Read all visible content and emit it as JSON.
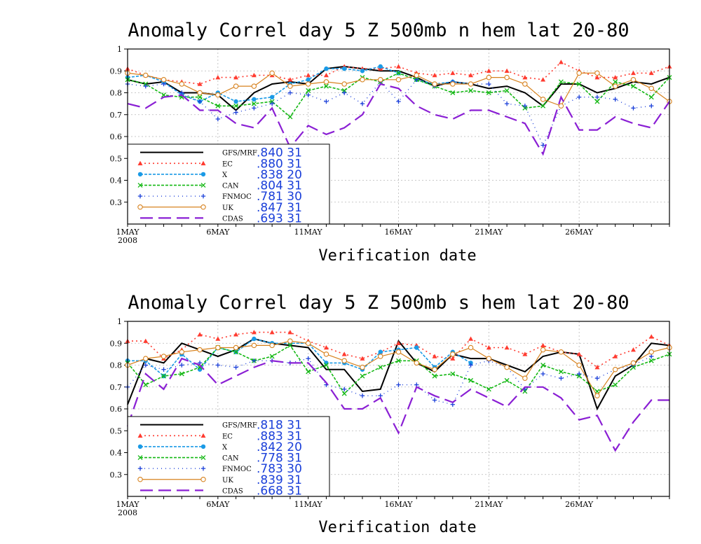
{
  "chart_data": [
    {
      "type": "line",
      "title": "Anomaly Correl  day 5  Z 500mb  n hem  lat 20-80",
      "xlabel": "Verification date",
      "ylabel": "",
      "ylim": [
        0.2,
        1.0
      ],
      "yticks": [
        "1",
        "0.9",
        "0.8",
        "0.7",
        "0.6",
        "0.5",
        "0.4",
        "0.3"
      ],
      "xlim": [
        1,
        31
      ],
      "xticks": [
        {
          "day": 1,
          "label": "1MAY",
          "sub": "2008"
        },
        {
          "day": 6,
          "label": "6MAY",
          "sub": ""
        },
        {
          "day": 11,
          "label": "11MAY",
          "sub": ""
        },
        {
          "day": 16,
          "label": "16MAY",
          "sub": ""
        },
        {
          "day": 21,
          "label": "21MAY",
          "sub": ""
        },
        {
          "day": 26,
          "label": "26MAY",
          "sub": ""
        }
      ],
      "grid": true,
      "legend_position": "bottom-left",
      "series": [
        {
          "name": "GFS/MRF",
          "score": ".840",
          "count": "31",
          "values": [
            0.86,
            0.84,
            0.85,
            0.8,
            0.8,
            0.79,
            0.72,
            0.8,
            0.84,
            0.85,
            0.84,
            0.91,
            0.92,
            0.91,
            0.9,
            0.9,
            0.87,
            0.83,
            0.85,
            0.84,
            0.82,
            0.83,
            0.8,
            0.74,
            0.84,
            0.84,
            0.8,
            0.82,
            0.85,
            0.84,
            0.87
          ]
        },
        {
          "name": "EC",
          "score": ".880",
          "count": "31",
          "values": [
            0.91,
            0.88,
            0.86,
            0.85,
            0.84,
            0.87,
            0.87,
            0.88,
            0.88,
            0.86,
            0.88,
            0.88,
            0.92,
            0.91,
            0.91,
            0.92,
            0.89,
            0.88,
            0.89,
            0.88,
            0.9,
            0.9,
            0.87,
            0.86,
            0.94,
            0.9,
            0.87,
            0.87,
            0.89,
            0.89,
            0.92
          ]
        },
        {
          "name": "X",
          "score": ".838",
          "count": "20",
          "values": [
            0.87,
            0.88,
            0.85,
            0.79,
            0.76,
            0.8,
            0.76,
            0.77,
            0.78,
            0.84,
            0.86,
            0.91,
            0.91,
            0.9,
            0.92,
            0.89,
            0.86,
            0.84,
            0.85,
            0.84,
            null,
            null,
            null,
            null,
            null,
            null,
            null,
            null,
            null,
            null,
            null
          ]
        },
        {
          "name": "CAN",
          "score": ".804",
          "count": "31",
          "values": [
            0.86,
            0.84,
            0.79,
            0.78,
            0.78,
            0.74,
            0.74,
            0.75,
            0.76,
            0.69,
            0.81,
            0.83,
            0.81,
            0.87,
            0.85,
            0.89,
            0.86,
            0.83,
            0.8,
            0.81,
            0.8,
            0.81,
            0.73,
            0.74,
            0.85,
            0.84,
            0.76,
            0.85,
            0.83,
            0.78,
            0.87
          ]
        },
        {
          "name": "FNMOC",
          "score": ".781",
          "count": "30",
          "values": [
            0.84,
            0.83,
            0.84,
            0.8,
            0.76,
            0.68,
            0.71,
            0.73,
            0.75,
            0.8,
            0.79,
            0.76,
            0.8,
            0.75,
            0.85,
            0.76,
            0.86,
            0.83,
            0.85,
            0.84,
            0.84,
            0.75,
            0.74,
            0.56,
            0.74,
            0.78,
            0.78,
            0.77,
            0.73,
            0.74,
            null
          ]
        },
        {
          "name": "UK",
          "score": ".847",
          "count": "31",
          "values": [
            0.89,
            0.88,
            0.86,
            0.84,
            0.8,
            0.79,
            0.83,
            0.83,
            0.89,
            0.83,
            0.84,
            0.85,
            0.84,
            0.86,
            0.86,
            0.86,
            0.88,
            0.84,
            0.84,
            0.84,
            0.87,
            0.87,
            0.84,
            0.77,
            0.74,
            0.89,
            0.89,
            0.83,
            0.86,
            0.82,
            0.76
          ]
        },
        {
          "name": "CDAS",
          "score": ".693",
          "count": "31",
          "values": [
            0.75,
            0.73,
            0.78,
            0.79,
            0.72,
            0.72,
            0.66,
            0.64,
            0.73,
            0.55,
            0.65,
            0.61,
            0.64,
            0.7,
            0.84,
            0.82,
            0.74,
            0.7,
            0.68,
            0.72,
            0.72,
            0.69,
            0.66,
            0.52,
            0.78,
            0.63,
            0.63,
            0.69,
            0.66,
            0.64,
            0.76
          ]
        }
      ]
    },
    {
      "type": "line",
      "title": "Anomaly Correl  day 5  Z 500mb  s hem  lat 20-80",
      "xlabel": "Verification date",
      "ylabel": "",
      "ylim": [
        0.2,
        1.0
      ],
      "yticks": [
        "1",
        "0.9",
        "0.8",
        "0.7",
        "0.6",
        "0.5",
        "0.4",
        "0.3"
      ],
      "xlim": [
        1,
        31
      ],
      "xticks": [
        {
          "day": 1,
          "label": "1MAY",
          "sub": "2008"
        },
        {
          "day": 6,
          "label": "6MAY",
          "sub": ""
        },
        {
          "day": 11,
          "label": "11MAY",
          "sub": ""
        },
        {
          "day": 16,
          "label": "16MAY",
          "sub": ""
        },
        {
          "day": 21,
          "label": "21MAY",
          "sub": ""
        },
        {
          "day": 26,
          "label": "26MAY",
          "sub": ""
        }
      ],
      "grid": true,
      "legend_position": "bottom-left",
      "series": [
        {
          "name": "GFS/MRF",
          "score": ".818",
          "count": "31",
          "values": [
            0.62,
            0.83,
            0.81,
            0.9,
            0.87,
            0.84,
            0.87,
            0.92,
            0.9,
            0.89,
            0.88,
            0.78,
            0.78,
            0.68,
            0.69,
            0.91,
            0.81,
            0.77,
            0.85,
            0.83,
            0.83,
            0.8,
            0.77,
            0.84,
            0.86,
            0.85,
            0.6,
            0.75,
            0.8,
            0.9,
            0.89
          ]
        },
        {
          "name": "EC",
          "score": ".883",
          "count": "31",
          "values": [
            0.91,
            0.91,
            0.83,
            0.87,
            0.94,
            0.92,
            0.94,
            0.95,
            0.95,
            0.95,
            0.91,
            0.88,
            0.85,
            0.83,
            0.86,
            0.9,
            0.89,
            0.84,
            0.83,
            0.92,
            0.88,
            0.88,
            0.85,
            0.89,
            0.86,
            0.85,
            0.79,
            0.84,
            0.87,
            0.93,
            0.89
          ]
        },
        {
          "name": "X",
          "score": ".842",
          "count": "20",
          "values": [
            0.82,
            0.82,
            0.75,
            0.85,
            0.78,
            0.88,
            0.86,
            0.92,
            0.9,
            0.9,
            0.9,
            0.81,
            0.81,
            0.78,
            0.86,
            0.87,
            0.88,
            0.79,
            0.86,
            0.81,
            null,
            null,
            null,
            null,
            null,
            null,
            null,
            null,
            null,
            null,
            null
          ]
        },
        {
          "name": "CAN",
          "score": ".778",
          "count": "31",
          "values": [
            0.81,
            0.71,
            0.75,
            0.76,
            0.79,
            0.88,
            0.86,
            0.82,
            0.84,
            0.89,
            0.77,
            0.8,
            0.67,
            0.75,
            0.79,
            0.82,
            0.82,
            0.75,
            0.76,
            0.73,
            0.69,
            0.73,
            0.68,
            0.8,
            0.77,
            0.75,
            0.68,
            0.71,
            0.79,
            0.82,
            0.85
          ]
        },
        {
          "name": "FNMOC",
          "score": ".783",
          "count": "30",
          "values": [
            0.7,
            0.8,
            0.78,
            0.8,
            0.81,
            0.8,
            0.79,
            0.82,
            0.82,
            0.81,
            0.83,
            0.71,
            0.69,
            0.66,
            0.66,
            0.71,
            0.71,
            0.64,
            0.62,
            0.8,
            0.82,
            0.79,
            0.69,
            0.76,
            0.74,
            0.76,
            0.74,
            0.78,
            0.8,
            0.84,
            null
          ]
        },
        {
          "name": "UK",
          "score": ".839",
          "count": "31",
          "values": [
            0.8,
            0.83,
            0.84,
            0.86,
            0.87,
            0.88,
            0.88,
            0.89,
            0.89,
            0.91,
            0.9,
            0.85,
            0.82,
            0.79,
            0.84,
            0.86,
            0.81,
            0.78,
            0.85,
            0.88,
            0.83,
            0.79,
            0.74,
            0.87,
            0.86,
            0.8,
            0.66,
            0.78,
            0.81,
            0.86,
            0.88
          ]
        },
        {
          "name": "CDAS",
          "score": ".668",
          "count": "31",
          "values": [
            0.52,
            0.76,
            0.69,
            0.83,
            0.8,
            0.71,
            0.75,
            0.79,
            0.82,
            0.81,
            0.81,
            0.72,
            0.6,
            0.6,
            0.65,
            0.49,
            0.7,
            0.66,
            0.63,
            0.69,
            0.65,
            0.61,
            0.7,
            0.7,
            0.65,
            0.55,
            0.57,
            0.41,
            0.54,
            0.64,
            0.64
          ]
        }
      ]
    }
  ],
  "styles": [
    {
      "color": "#000000",
      "dash": "",
      "marker": "none",
      "width": 2
    },
    {
      "color": "#ff3b30",
      "dash": "2 4",
      "marker": "triangle",
      "width": 1.6
    },
    {
      "color": "#1a9ae6",
      "dash": "4 2",
      "marker": "circle",
      "width": 1.6
    },
    {
      "color": "#14b814",
      "dash": "4 2",
      "marker": "x",
      "width": 1.6
    },
    {
      "color": "#1a3fd9",
      "dash": "1 5",
      "marker": "plus",
      "width": 1.4
    },
    {
      "color": "#d7821e",
      "dash": "",
      "marker": "open-circle",
      "width": 1.2
    },
    {
      "color": "#8a1fd4",
      "dash": "18 8",
      "marker": "none",
      "width": 2.2
    }
  ]
}
